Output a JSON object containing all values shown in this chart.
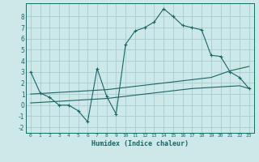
{
  "xlabel": "Humidex (Indice chaleur)",
  "background_color": "#cce8e8",
  "grid_color": "#aacccc",
  "line_color": "#1a6666",
  "xlim": [
    -0.5,
    23.5
  ],
  "ylim": [
    -2.5,
    9.2
  ],
  "yticks": [
    -2,
    -1,
    0,
    1,
    2,
    3,
    4,
    5,
    6,
    7,
    8
  ],
  "xticks": [
    0,
    1,
    2,
    3,
    4,
    5,
    6,
    7,
    8,
    9,
    10,
    11,
    12,
    13,
    14,
    15,
    16,
    17,
    18,
    19,
    20,
    21,
    22,
    23
  ],
  "series": {
    "main": {
      "x": [
        0,
        1,
        2,
        3,
        4,
        5,
        6,
        7,
        8,
        9,
        10,
        11,
        12,
        13,
        14,
        15,
        16,
        17,
        18,
        19,
        20,
        21,
        22,
        23
      ],
      "y": [
        3.0,
        1.1,
        0.7,
        0.0,
        0.0,
        -0.5,
        -1.5,
        3.3,
        0.8,
        -0.8,
        5.5,
        6.7,
        7.0,
        7.5,
        8.7,
        8.0,
        7.2,
        7.0,
        6.8,
        4.5,
        4.4,
        3.0,
        2.5,
        1.5
      ]
    },
    "upper_parallel": {
      "x": [
        0,
        1,
        2,
        3,
        4,
        5,
        6,
        7,
        8,
        9,
        10,
        11,
        12,
        13,
        14,
        15,
        16,
        17,
        18,
        19,
        20,
        21,
        22,
        23
      ],
      "y": [
        1.0,
        1.05,
        1.1,
        1.15,
        1.2,
        1.25,
        1.3,
        1.35,
        1.4,
        1.5,
        1.6,
        1.7,
        1.8,
        1.9,
        2.0,
        2.1,
        2.2,
        2.3,
        2.4,
        2.5,
        2.8,
        3.1,
        3.3,
        3.5
      ]
    },
    "lower_parallel": {
      "x": [
        0,
        1,
        2,
        3,
        4,
        5,
        6,
        7,
        8,
        9,
        10,
        11,
        12,
        13,
        14,
        15,
        16,
        17,
        18,
        19,
        20,
        21,
        22,
        23
      ],
      "y": [
        0.2,
        0.25,
        0.3,
        0.35,
        0.4,
        0.45,
        0.5,
        0.55,
        0.6,
        0.7,
        0.8,
        0.9,
        1.0,
        1.1,
        1.2,
        1.3,
        1.4,
        1.5,
        1.55,
        1.6,
        1.65,
        1.7,
        1.75,
        1.5
      ]
    }
  }
}
